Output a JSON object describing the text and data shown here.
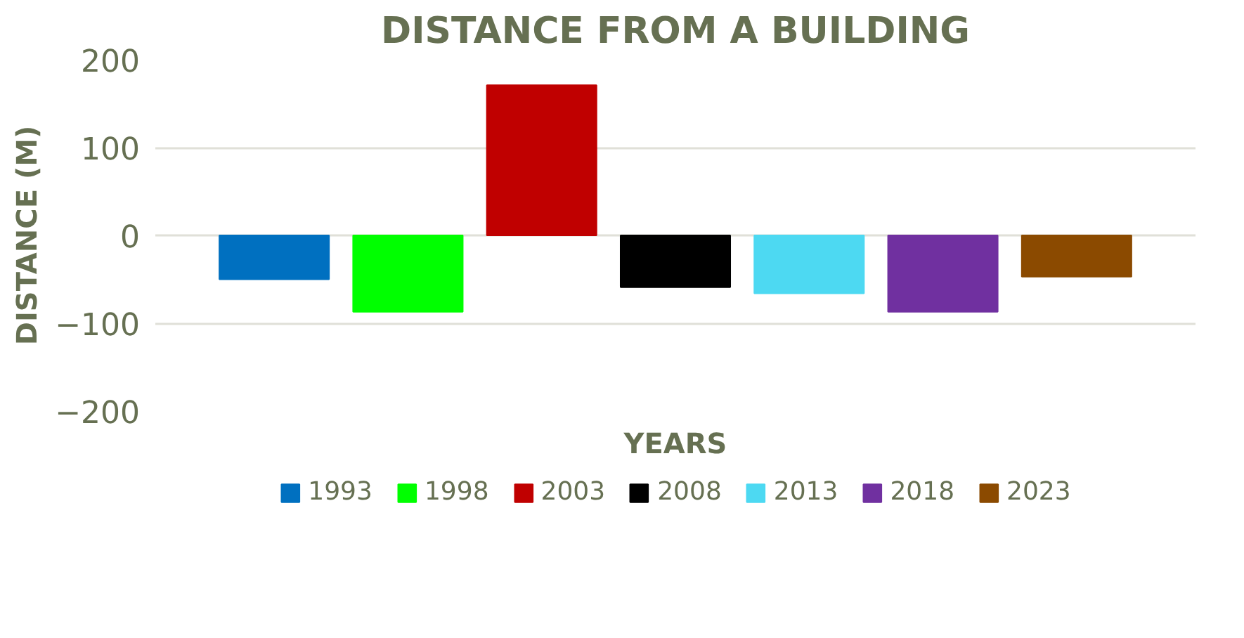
{
  "chart_data": {
    "type": "bar",
    "title": "DISTANCE FROM A BUILDING",
    "xlabel": "YEARS",
    "ylabel": "DISTANCE (M)",
    "categories": [
      null
    ],
    "series": [
      {
        "name": "1993",
        "color": "#0070c0",
        "values": [
          -50
        ]
      },
      {
        "name": "1998",
        "color": "#00ff00",
        "values": [
          -87
        ]
      },
      {
        "name": "2003",
        "color": "#c00000",
        "values": [
          171
        ]
      },
      {
        "name": "2008",
        "color": "#000000",
        "values": [
          -59
        ]
      },
      {
        "name": "2013",
        "color": "#4dd9f2",
        "values": [
          -66
        ]
      },
      {
        "name": "2018",
        "color": "#7030a0",
        "values": [
          -87
        ]
      },
      {
        "name": "2023",
        "color": "#8b4a00",
        "values": [
          -47
        ]
      }
    ],
    "ylim": [
      -200,
      200
    ],
    "yticks": [
      -200,
      -100,
      0,
      100,
      200
    ],
    "grid": "y",
    "legend": "bottom",
    "tick_labels": "y"
  }
}
